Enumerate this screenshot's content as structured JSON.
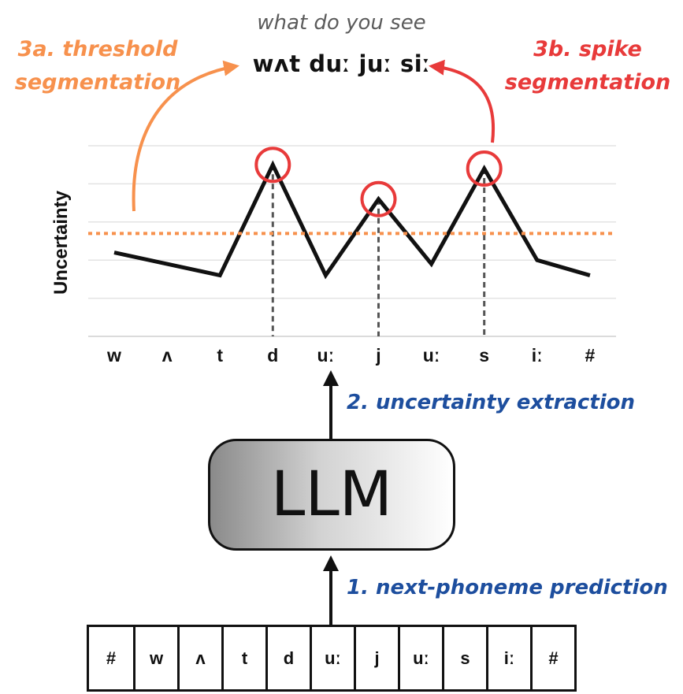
{
  "caption": "what do you see",
  "transcription": "wʌt duː juː siː",
  "steps": {
    "threshold": "3a. threshold segmentation",
    "spike": "3b. spike segmentation",
    "extraction": "2. uncertainty extraction",
    "prediction": "1. next-phoneme prediction"
  },
  "colors": {
    "threshold": "#f7914d",
    "spike": "#e83a3a",
    "steps": "#1d4e9e",
    "line": "#111111",
    "grid": "#e3e3e3"
  },
  "llm_label": "LLM",
  "input_sequence": [
    "#",
    "w",
    "ʌ",
    "t",
    "d",
    "uː",
    "j",
    "uː",
    "s",
    "iː",
    "#"
  ],
  "chart_data": {
    "type": "line",
    "ylabel": "Uncertainty",
    "xlabel": "",
    "categories": [
      "w",
      "ʌ",
      "t",
      "d",
      "uː",
      "j",
      "uː",
      "s",
      "iː",
      "#"
    ],
    "values": [
      2.2,
      1.9,
      1.6,
      4.5,
      1.6,
      3.6,
      1.9,
      4.4,
      2.0,
      1.6
    ],
    "ylim": [
      0,
      5
    ],
    "grid": true,
    "threshold": 2.7,
    "spikes": [
      "d",
      "j",
      "s"
    ]
  }
}
